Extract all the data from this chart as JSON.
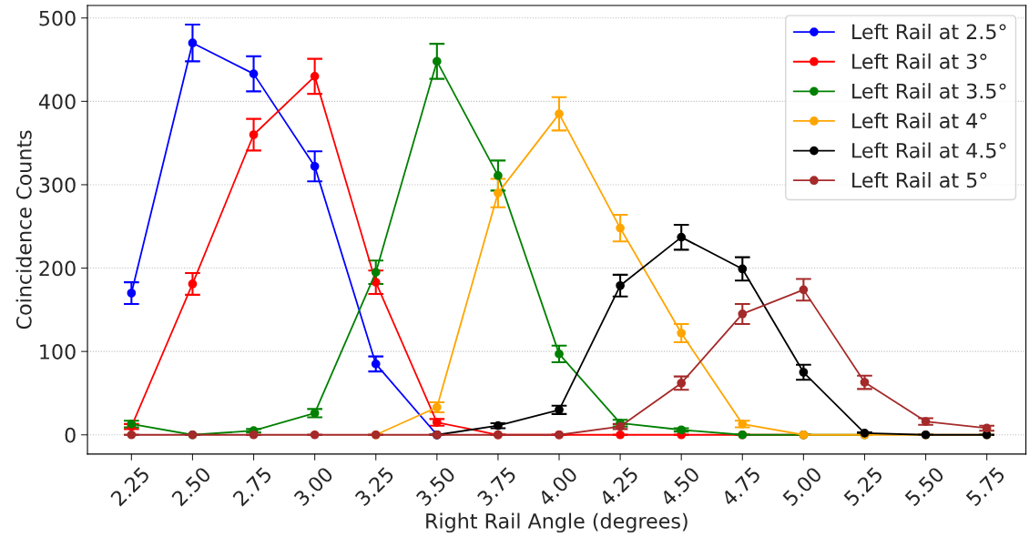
{
  "chart_data": {
    "type": "line",
    "xlabel": "Right Rail Angle (degrees)",
    "ylabel": "Coincidence Counts",
    "x": [
      2.25,
      2.5,
      2.75,
      3.0,
      3.25,
      3.5,
      3.75,
      4.0,
      4.25,
      4.5,
      4.75,
      5.0,
      5.25,
      5.5,
      5.75
    ],
    "xlim": [
      2.07,
      5.91
    ],
    "xticks": [
      {
        "value": 2.25,
        "label": "2.25"
      },
      {
        "value": 2.5,
        "label": "2.50"
      },
      {
        "value": 2.75,
        "label": "2.75"
      },
      {
        "value": 3.0,
        "label": "3.00"
      },
      {
        "value": 3.25,
        "label": "3.25"
      },
      {
        "value": 3.5,
        "label": "3.50"
      },
      {
        "value": 3.75,
        "label": "3.75"
      },
      {
        "value": 4.0,
        "label": "4.00"
      },
      {
        "value": 4.25,
        "label": "4.25"
      },
      {
        "value": 4.5,
        "label": "4.50"
      },
      {
        "value": 4.75,
        "label": "4.75"
      },
      {
        "value": 5.0,
        "label": "5.00"
      },
      {
        "value": 5.25,
        "label": "5.25"
      },
      {
        "value": 5.5,
        "label": "5.50"
      },
      {
        "value": 5.75,
        "label": "5.75"
      }
    ],
    "ylim": [
      -23,
      515
    ],
    "yticks": [
      0,
      100,
      200,
      300,
      400,
      500
    ],
    "grid": "y",
    "legend": "top right",
    "marker": "circle",
    "line_style": "solid",
    "series": [
      {
        "name": "Left Rail at 2.5°",
        "color": "#0000ff",
        "values": [
          170,
          470,
          433,
          322,
          85,
          0,
          null,
          null,
          null,
          null,
          null,
          null,
          null,
          null,
          null
        ],
        "errors": [
          13,
          22,
          21,
          18,
          9,
          null,
          null,
          null,
          null,
          null,
          null,
          null,
          null,
          null,
          null
        ]
      },
      {
        "name": "Left Rail at 3°",
        "color": "#ff0000",
        "values": [
          10,
          181,
          360,
          430,
          183,
          15,
          0,
          0,
          0,
          0,
          0,
          0,
          null,
          null,
          null
        ],
        "errors": [
          3,
          13,
          19,
          21,
          14,
          4,
          null,
          null,
          null,
          null,
          null,
          null,
          null,
          null,
          null
        ]
      },
      {
        "name": "Left Rail at 3.5°",
        "color": "#008000",
        "values": [
          13,
          0,
          5,
          26,
          195,
          448,
          311,
          97,
          14,
          6,
          0,
          0,
          0,
          null,
          null
        ],
        "errors": [
          4,
          null,
          2,
          5,
          14,
          21,
          18,
          10,
          4,
          2,
          null,
          null,
          null,
          null,
          null
        ]
      },
      {
        "name": "Left Rail at 4°",
        "color": "#ffa500",
        "values": [
          null,
          null,
          null,
          null,
          0,
          33,
          290,
          385,
          248,
          122,
          13,
          0,
          0,
          0,
          0
        ],
        "errors": [
          null,
          null,
          null,
          null,
          null,
          6,
          17,
          20,
          16,
          11,
          4,
          null,
          null,
          null,
          null
        ]
      },
      {
        "name": "Left Rail at 4.5°",
        "color": "#000000",
        "values": [
          null,
          null,
          null,
          null,
          null,
          0,
          11,
          30,
          179,
          237,
          199,
          75,
          2,
          0,
          0
        ],
        "errors": [
          null,
          null,
          null,
          null,
          null,
          null,
          3,
          5,
          13,
          15,
          14,
          9,
          1,
          null,
          null
        ]
      },
      {
        "name": "Left Rail at 5°",
        "color": "#a52a2a",
        "values": [
          0,
          0,
          0,
          0,
          0,
          0,
          0,
          0,
          10,
          62,
          145,
          174,
          63,
          16,
          8
        ],
        "errors": [
          null,
          null,
          null,
          null,
          null,
          null,
          null,
          null,
          3,
          8,
          12,
          13,
          8,
          4,
          3
        ]
      }
    ]
  }
}
